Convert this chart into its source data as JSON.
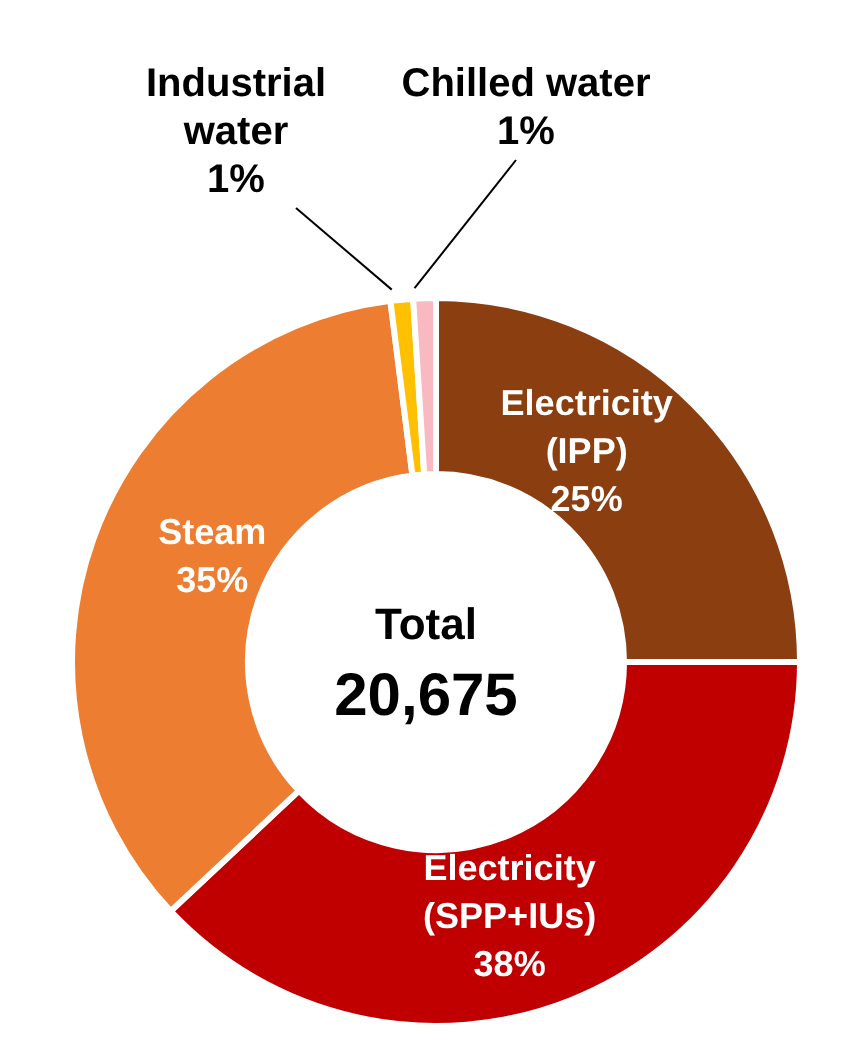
{
  "chart_data": {
    "type": "donut",
    "categories": [
      "Electricity (IPP)",
      "Electricity (SPP+IUs)",
      "Steam",
      "Industrial water",
      "Chilled water"
    ],
    "values": [
      25,
      38,
      35,
      1,
      1
    ],
    "value_labels": [
      "25%",
      "38%",
      "35%",
      "1%",
      "1%"
    ],
    "colors": [
      "#8b3e0f",
      "#c00000",
      "#ed7d31",
      "#ffc000",
      "#f8b9c0"
    ],
    "annotations": [
      "Total",
      "20,675"
    ],
    "legend": false
  }
}
